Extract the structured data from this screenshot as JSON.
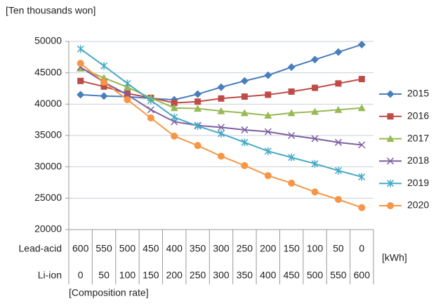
{
  "chart_data": {
    "type": "line",
    "y_label": "[Ten thousands   won]",
    "x_unit": "[kWh]",
    "x_label": "[Composition rate]",
    "category_levels": [
      {
        "name": "Lead-acid",
        "labels": [
          "600",
          "550",
          "500",
          "450",
          "400",
          "350",
          "300",
          "250",
          "200",
          "150",
          "100",
          "50",
          "0"
        ]
      },
      {
        "name": "Li-ion",
        "labels": [
          "0",
          "50",
          "100",
          "150",
          "200",
          "250",
          "300",
          "350",
          "400",
          "450",
          "500",
          "550",
          "600"
        ]
      }
    ],
    "ylim": [
      20000,
      50000
    ],
    "yticks": [
      20000,
      25000,
      30000,
      35000,
      40000,
      45000,
      50000
    ],
    "grid": true,
    "legend": "right",
    "series": [
      {
        "name": "2015",
        "color": "#4a7ebb",
        "marker": "diamond",
        "values": [
          41500,
          41300,
          41200,
          40900,
          40700,
          41600,
          42700,
          43700,
          44600,
          45900,
          47100,
          48300,
          49500
        ]
      },
      {
        "name": "2016",
        "color": "#be4b48",
        "marker": "square",
        "values": [
          43700,
          42800,
          41700,
          41000,
          40200,
          40400,
          40900,
          41200,
          41500,
          42000,
          42600,
          43300,
          44000
        ]
      },
      {
        "name": "2017",
        "color": "#98b954",
        "marker": "triangle",
        "values": [
          45700,
          44200,
          42700,
          41000,
          39400,
          39300,
          38900,
          38600,
          38200,
          38600,
          38800,
          39100,
          39400
        ]
      },
      {
        "name": "2018",
        "color": "#7d60a0",
        "marker": "x",
        "values": [
          45900,
          43500,
          41500,
          39100,
          37200,
          36600,
          36300,
          35900,
          35600,
          35000,
          34500,
          33900,
          33500
        ]
      },
      {
        "name": "2019",
        "color": "#46aac5",
        "marker": "star",
        "values": [
          48800,
          46100,
          43300,
          40600,
          37900,
          36500,
          35300,
          33900,
          32500,
          31500,
          30500,
          29400,
          28400
        ]
      },
      {
        "name": "2020",
        "color": "#f79646",
        "marker": "circle",
        "values": [
          46500,
          43500,
          40700,
          37800,
          34900,
          33400,
          31700,
          30200,
          28600,
          27400,
          26000,
          24800,
          23500
        ]
      }
    ]
  }
}
